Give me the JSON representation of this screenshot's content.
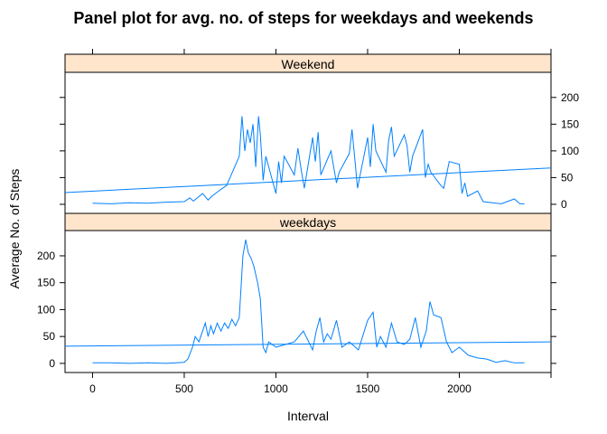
{
  "chart_data": {
    "type": "line",
    "title": "Panel plot for avg. no. of steps for weekdays and weekends",
    "xlabel": "Interval",
    "ylabel": "Average No. of Steps",
    "xlim": [
      -150,
      2500
    ],
    "ylim": [
      -17,
      247
    ],
    "x_ticks": [
      0,
      500,
      1000,
      1500,
      2000
    ],
    "y_ticks": [
      0,
      50,
      100,
      150,
      200
    ],
    "strip_color": "#ffe5cc",
    "line_color": "#0080ff",
    "panels": [
      {
        "name": "Weekend",
        "y_axis_side": "right",
        "trend_line": {
          "x": [
            -150,
            2500
          ],
          "y": [
            22,
            68
          ]
        },
        "series": {
          "x": [
            0,
            100,
            200,
            300,
            400,
            500,
            530,
            550,
            600,
            630,
            650,
            700,
            730,
            750,
            800,
            815,
            830,
            845,
            860,
            875,
            890,
            905,
            915,
            930,
            945,
            1000,
            1015,
            1030,
            1045,
            1100,
            1120,
            1140,
            1155,
            1200,
            1215,
            1230,
            1245,
            1300,
            1315,
            1330,
            1345,
            1400,
            1415,
            1430,
            1445,
            1500,
            1515,
            1530,
            1545,
            1600,
            1615,
            1630,
            1645,
            1700,
            1715,
            1730,
            1745,
            1800,
            1815,
            1830,
            1845,
            1900,
            1915,
            1930,
            1945,
            2000,
            2015,
            2030,
            2045,
            2100,
            2130,
            2200,
            2230,
            2300,
            2330,
            2355
          ],
          "y": [
            2,
            1,
            3,
            2,
            4,
            5,
            12,
            6,
            20,
            8,
            15,
            28,
            35,
            50,
            90,
            165,
            100,
            140,
            115,
            150,
            70,
            165,
            130,
            45,
            90,
            20,
            80,
            40,
            90,
            55,
            105,
            60,
            30,
            125,
            80,
            135,
            55,
            100,
            70,
            40,
            60,
            95,
            140,
            85,
            30,
            125,
            70,
            150,
            100,
            60,
            120,
            145,
            90,
            130,
            110,
            60,
            90,
            140,
            50,
            75,
            60,
            35,
            30,
            55,
            80,
            75,
            20,
            40,
            15,
            25,
            5,
            2,
            1,
            10,
            1,
            1
          ]
        }
      },
      {
        "name": "weekdays",
        "y_axis_side": "left",
        "trend_line": {
          "x": [
            -150,
            2500
          ],
          "y": [
            32,
            40
          ]
        },
        "series": {
          "x": [
            0,
            100,
            200,
            300,
            400,
            500,
            520,
            545,
            560,
            580,
            600,
            615,
            630,
            645,
            660,
            680,
            700,
            720,
            740,
            760,
            780,
            800,
            820,
            835,
            850,
            865,
            880,
            900,
            915,
            930,
            945,
            960,
            1000,
            1050,
            1100,
            1150,
            1200,
            1220,
            1240,
            1260,
            1280,
            1300,
            1330,
            1360,
            1400,
            1450,
            1500,
            1530,
            1550,
            1570,
            1600,
            1630,
            1660,
            1700,
            1730,
            1760,
            1790,
            1820,
            1840,
            1860,
            1900,
            1930,
            1960,
            2000,
            2050,
            2100,
            2150,
            2200,
            2250,
            2300,
            2355
          ],
          "y": [
            1,
            1,
            0,
            1,
            0,
            2,
            8,
            30,
            50,
            40,
            60,
            75,
            50,
            70,
            55,
            75,
            60,
            75,
            65,
            82,
            70,
            85,
            200,
            230,
            205,
            195,
            180,
            150,
            120,
            30,
            20,
            40,
            30,
            35,
            40,
            60,
            25,
            60,
            85,
            40,
            55,
            45,
            80,
            30,
            40,
            25,
            80,
            95,
            30,
            50,
            30,
            75,
            40,
            35,
            45,
            85,
            30,
            60,
            115,
            90,
            85,
            40,
            20,
            30,
            15,
            10,
            8,
            2,
            5,
            1,
            1
          ]
        }
      }
    ]
  }
}
